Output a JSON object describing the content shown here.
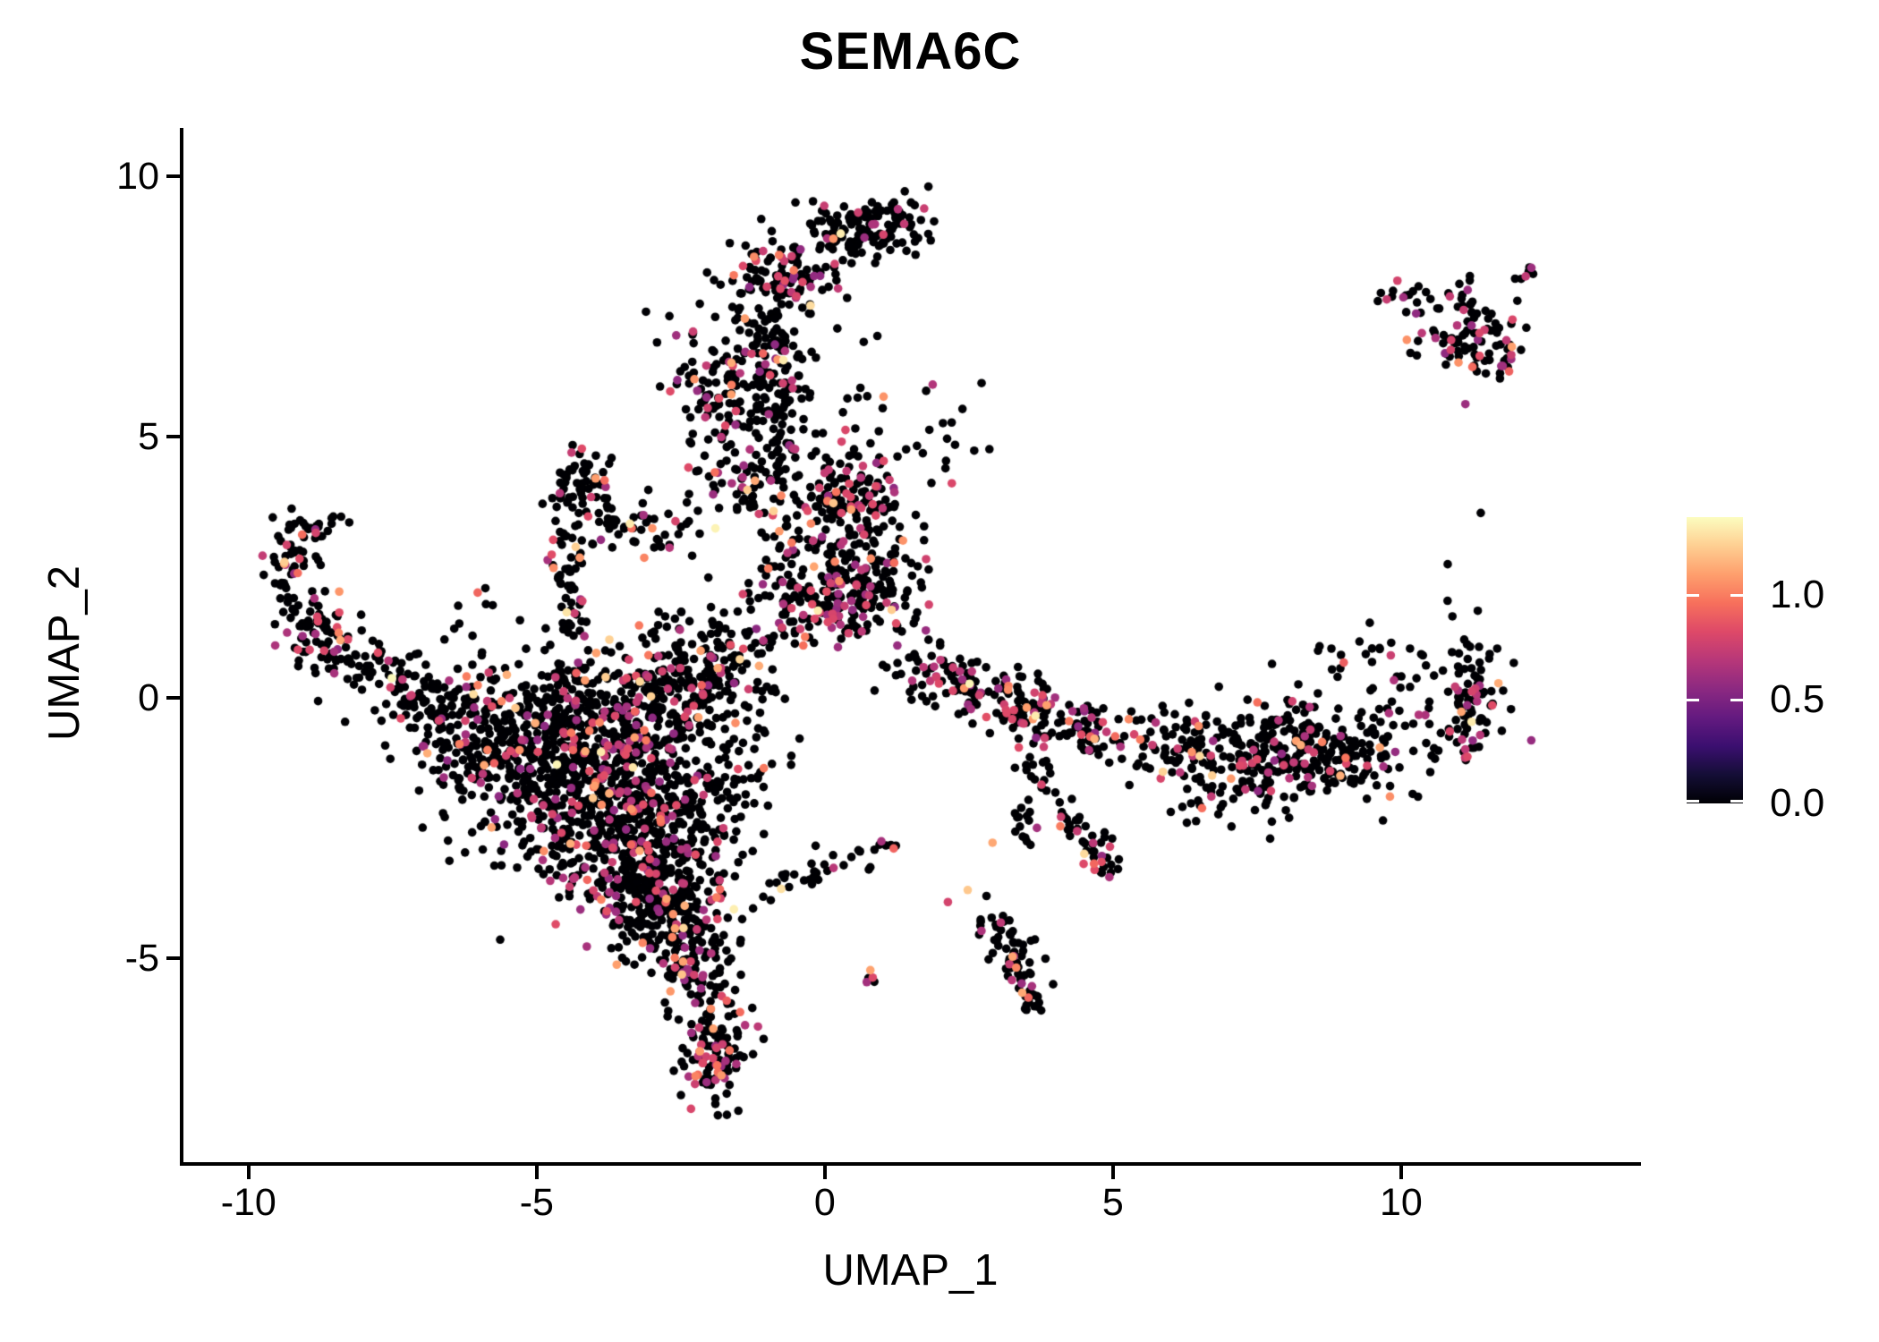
{
  "chart_data": {
    "type": "scatter",
    "title": "SEMA6C",
    "xlabel": "UMAP_1",
    "ylabel": "UMAP_2",
    "x_range": [
      -11.13,
      14.1
    ],
    "y_range": [
      -8.95,
      10.93
    ],
    "grid": false,
    "x_ticks": [
      {
        "label": "-10",
        "value": -10
      },
      {
        "label": "-5",
        "value": -5
      },
      {
        "label": "0",
        "value": 0
      },
      {
        "label": "5",
        "value": 5
      },
      {
        "label": "10",
        "value": 10
      }
    ],
    "y_ticks": [
      {
        "label": "10",
        "value": 10
      },
      {
        "label": "5",
        "value": 5
      },
      {
        "label": "0",
        "value": 0
      },
      {
        "label": "-5",
        "value": -5
      }
    ],
    "colorbar": {
      "position": "right",
      "vmin": 0.0,
      "vmax": 1.376,
      "ticks": [
        {
          "label": "1.0",
          "value": 1.0
        },
        {
          "label": "0.5",
          "value": 0.5
        },
        {
          "label": "0.0",
          "value": 0.0
        }
      ],
      "colormap": "magma",
      "stops": [
        [
          0.0,
          "#000004"
        ],
        [
          0.1,
          "#140e36"
        ],
        [
          0.2,
          "#3b0f70"
        ],
        [
          0.3,
          "#641a80"
        ],
        [
          0.4,
          "#8c2981"
        ],
        [
          0.5,
          "#b73779"
        ],
        [
          0.6,
          "#de4968"
        ],
        [
          0.7,
          "#f7705c"
        ],
        [
          0.8,
          "#fe9f6d"
        ],
        [
          0.9,
          "#fecf92"
        ],
        [
          1.0,
          "#fcfdbf"
        ]
      ]
    },
    "point_radius_px": 4.8,
    "seed": 42,
    "n_points_approx": 5100,
    "value_sampling": {
      "zero_value": 0.0,
      "p_magenta": 0.78,
      "magenta_range": [
        0.55,
        0.85
      ],
      "p_orange": 0.18,
      "orange_range": [
        0.9,
        1.15
      ],
      "p_pale": 0.04,
      "pale_range": [
        1.2,
        1.37
      ]
    },
    "clusters": [
      {
        "t": "g",
        "n": 140,
        "x": 0.7,
        "y": 9.0,
        "sx": 0.55,
        "sy": 0.3,
        "pc": 0.12
      },
      {
        "t": "g",
        "n": 110,
        "x": -0.75,
        "y": 8.1,
        "sx": 0.5,
        "sy": 0.38,
        "pc": 0.28
      },
      {
        "t": "s",
        "n": 95,
        "x": -1.0,
        "y": 7.5,
        "x2": -0.65,
        "y2": 5.2,
        "w": 0.3,
        "pc": 0.18
      },
      {
        "t": "g",
        "n": 115,
        "x": -1.7,
        "y": 5.6,
        "sx": 0.5,
        "sy": 0.75,
        "pc": 0.15
      },
      {
        "t": "g",
        "n": 75,
        "x": -1.05,
        "y": 4.3,
        "sx": 0.6,
        "sy": 0.5,
        "pc": 0.2
      },
      {
        "t": "g",
        "n": 160,
        "x": -0.1,
        "y": 2.7,
        "sx": 0.85,
        "sy": 0.8,
        "pc": 0.22
      },
      {
        "t": "s",
        "n": 175,
        "x": -0.6,
        "y": 1.6,
        "x2": 1.35,
        "y2": 2.1,
        "w": 0.4,
        "pc": 0.27
      },
      {
        "t": "g",
        "n": 115,
        "x": 0.55,
        "y": 3.85,
        "sx": 0.42,
        "sy": 0.5,
        "pc": 0.25
      },
      {
        "t": "g",
        "n": 70,
        "x": -4.25,
        "y": 3.9,
        "sx": 0.28,
        "sy": 0.45,
        "pc": 0.15
      },
      {
        "t": "s",
        "n": 45,
        "x": -3.9,
        "y": 3.6,
        "x2": -2.35,
        "y2": 2.9,
        "w": 0.28,
        "pc": 0.2
      },
      {
        "t": "s",
        "n": 55,
        "x": -4.35,
        "y": 3.2,
        "x2": -4.5,
        "y2": 1.1,
        "w": 0.22,
        "pc": 0.15
      },
      {
        "t": "s",
        "n": 25,
        "x": -9.25,
        "y": 3.2,
        "x2": -8.55,
        "y2": 3.3,
        "w": 0.18,
        "pc": 0.2
      },
      {
        "t": "s",
        "n": 40,
        "x": -9.4,
        "y": 2.3,
        "x2": -9.2,
        "y2": 3.05,
        "w": 0.2,
        "pc": 0.15
      },
      {
        "t": "g",
        "n": 60,
        "x": -9.0,
        "y": 1.4,
        "sx": 0.33,
        "sy": 0.38,
        "pc": 0.18
      },
      {
        "t": "s",
        "n": 85,
        "x": -8.7,
        "y": 1.1,
        "x2": -7.2,
        "y2": 0.2,
        "w": 0.32,
        "pc": 0.15
      },
      {
        "t": "s",
        "n": 55,
        "x": -7.2,
        "y": 0.2,
        "x2": -6.3,
        "y2": -0.5,
        "w": 0.38,
        "pc": 0.1
      },
      {
        "t": "g",
        "n": 420,
        "x": -4.6,
        "y": -0.5,
        "sx": 1.1,
        "sy": 0.65,
        "pc": 0.17
      },
      {
        "t": "g",
        "n": 450,
        "x": -4.0,
        "y": -1.7,
        "sx": 1.0,
        "sy": 0.8,
        "pc": 0.17
      },
      {
        "t": "g",
        "n": 380,
        "x": -3.3,
        "y": -2.95,
        "sx": 0.75,
        "sy": 0.75,
        "pc": 0.17
      },
      {
        "t": "g",
        "n": 180,
        "x": -2.65,
        "y": -4.1,
        "sx": 0.5,
        "sy": 0.55,
        "pc": 0.15
      },
      {
        "t": "g",
        "n": 165,
        "x": -2.7,
        "y": 0.3,
        "sx": 0.6,
        "sy": 0.6,
        "pc": 0.2
      },
      {
        "t": "g",
        "n": 130,
        "x": -1.9,
        "y": -1.3,
        "sx": 0.55,
        "sy": 1.15,
        "pc": 0.12
      },
      {
        "t": "g",
        "n": 90,
        "x": -6.2,
        "y": -0.9,
        "sx": 0.5,
        "sy": 0.6,
        "pc": 0.1
      },
      {
        "t": "g",
        "n": 60,
        "x": -1.6,
        "y": 0.9,
        "sx": 0.5,
        "sy": 0.65,
        "pc": 0.15
      },
      {
        "t": "s",
        "n": 85,
        "x": -2.5,
        "y": -4.6,
        "x2": -1.9,
        "y2": -5.9,
        "w": 0.3,
        "pc": 0.18
      },
      {
        "t": "g",
        "n": 115,
        "x": -1.85,
        "y": -6.8,
        "sx": 0.3,
        "sy": 0.52,
        "pc": 0.25
      },
      {
        "t": "g",
        "n": 5,
        "x": 0.65,
        "y": -5.35,
        "sx": 0.14,
        "sy": 0.1,
        "pc": 0.3
      },
      {
        "t": "g",
        "n": 75,
        "x": 2.1,
        "y": 0.35,
        "sx": 0.45,
        "sy": 0.33,
        "pc": 0.3
      },
      {
        "t": "s",
        "n": 135,
        "x": 2.7,
        "y": 0.15,
        "x2": 4.7,
        "y2": -0.7,
        "w": 0.32,
        "pc": 0.3
      },
      {
        "t": "s",
        "n": 70,
        "x": 4.7,
        "y": -0.75,
        "x2": 6.7,
        "y2": -1.05,
        "w": 0.28,
        "pc": 0.18
      },
      {
        "t": "g",
        "n": 340,
        "x": 8.3,
        "y": -1.0,
        "sx": 1.05,
        "sy": 0.5,
        "pc": 0.15
      },
      {
        "t": "s",
        "n": 80,
        "x": 11.15,
        "y": -1.0,
        "x2": 11.3,
        "y2": 0.75,
        "w": 0.22,
        "pc": 0.18
      },
      {
        "t": "g",
        "n": 40,
        "x": 9.9,
        "y": 0.55,
        "sx": 0.75,
        "sy": 0.45,
        "pc": 0.08
      },
      {
        "t": "g",
        "n": 40,
        "x": 6.9,
        "y": -1.9,
        "sx": 0.8,
        "sy": 0.4,
        "pc": 0.1
      },
      {
        "t": "s",
        "n": 50,
        "x": 3.3,
        "y": -1.05,
        "x2": 4.8,
        "y2": -3.05,
        "w": 0.17,
        "pc": 0.18
      },
      {
        "t": "g",
        "n": 14,
        "x": 3.45,
        "y": -2.45,
        "sx": 0.12,
        "sy": 0.22,
        "pc": 0.05
      },
      {
        "t": "g",
        "n": 13,
        "x": 4.85,
        "y": -3.2,
        "sx": 0.16,
        "sy": 0.16,
        "pc": 0.55
      },
      {
        "t": "g",
        "n": 3,
        "x": 2.55,
        "y": -3.8,
        "sx": 0.18,
        "sy": 0.08,
        "pc": 0.7
      },
      {
        "t": "g",
        "n": 1,
        "x": 2.8,
        "y": -2.9,
        "sx": 0.05,
        "sy": 0.05,
        "pc": 1.0
      },
      {
        "t": "s",
        "n": 60,
        "x": 3.0,
        "y": -4.4,
        "x2": 3.55,
        "y2": -5.6,
        "w": 0.2,
        "pc": 0.12
      },
      {
        "t": "g",
        "n": 15,
        "x": 3.6,
        "y": -5.75,
        "sx": 0.14,
        "sy": 0.18,
        "pc": 0.05
      },
      {
        "t": "s",
        "n": 12,
        "x": 9.7,
        "y": 7.65,
        "x2": 10.35,
        "y2": 7.8,
        "w": 0.12,
        "pc": 0.25
      },
      {
        "t": "g",
        "n": 80,
        "x": 11.1,
        "y": 7.1,
        "sx": 0.45,
        "sy": 0.42,
        "pc": 0.3
      },
      {
        "t": "s",
        "n": 7,
        "x": 12.0,
        "y": 8.05,
        "x2": 12.4,
        "y2": 8.35,
        "w": 0.1,
        "pc": 0.3
      },
      {
        "t": "g",
        "n": 28,
        "x": 11.6,
        "y": 6.5,
        "sx": 0.3,
        "sy": 0.3,
        "pc": 0.3
      },
      {
        "t": "g",
        "n": 45,
        "x": -0.2,
        "y": 5.6,
        "sx": 1.1,
        "sy": 1.2,
        "pc": 0.15
      },
      {
        "t": "s",
        "n": 35,
        "x": -1.0,
        "y": -3.7,
        "x2": 1.3,
        "y2": -2.9,
        "w": 0.18,
        "pc": 0.12
      },
      {
        "t": "g",
        "n": 16,
        "x": 1.7,
        "y": 4.9,
        "sx": 0.5,
        "sy": 0.5,
        "pc": 0.2
      },
      {
        "t": "g",
        "n": 10,
        "x": -6.0,
        "y": 1.6,
        "sx": 0.5,
        "sy": 0.35,
        "pc": 0.1
      },
      {
        "t": "g",
        "n": 14,
        "x": -2.5,
        "y": 6.8,
        "sx": 0.4,
        "sy": 0.6,
        "pc": 0.15
      },
      {
        "t": "g",
        "n": 3,
        "x": 11.0,
        "y": 2.9,
        "sx": 0.4,
        "sy": 0.5,
        "pc": 0.0
      },
      {
        "t": "g",
        "n": 4,
        "x": 11.75,
        "y": -0.5,
        "sx": 0.25,
        "sy": 0.35,
        "pc": 0.2
      }
    ]
  }
}
